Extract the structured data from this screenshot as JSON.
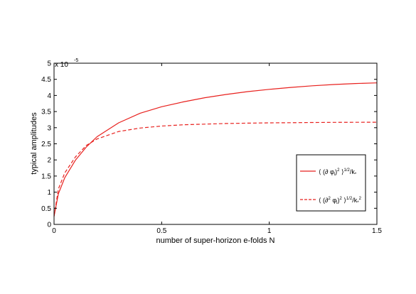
{
  "chart_data": {
    "type": "line",
    "xlabel": "number of super-horizon e-folds N",
    "ylabel": "typical amplitudes",
    "y_scale_base": "x 10",
    "y_scale_exp": "-5",
    "xlim": [
      0,
      1.5
    ],
    "ylim": [
      0,
      5
    ],
    "xticks": [
      0,
      0.5,
      1,
      1.5
    ],
    "xtick_labels": [
      "0",
      "0.5",
      "1",
      "1.5"
    ],
    "yticks": [
      0,
      0.5,
      1,
      1.5,
      2,
      2.5,
      3,
      3.5,
      4,
      4.5,
      5
    ],
    "ytick_labels": [
      "0",
      "0.5",
      "1",
      "1.5",
      "2",
      "2.5",
      "3",
      "3.5",
      "4",
      "4.5",
      "5"
    ],
    "grid": false,
    "legend_position": "right",
    "series": [
      {
        "legend": "⟨ (∂ φl)2 ⟩1/2/k*",
        "color": "#e8211e",
        "style": "solid",
        "x": [
          0,
          0.02,
          0.05,
          0.1,
          0.15,
          0.2,
          0.3,
          0.4,
          0.5,
          0.6,
          0.7,
          0.8,
          0.9,
          1.0,
          1.1,
          1.2,
          1.3,
          1.4,
          1.5
        ],
        "y": [
          0.25,
          0.95,
          1.45,
          2.0,
          2.4,
          2.72,
          3.15,
          3.45,
          3.65,
          3.8,
          3.93,
          4.03,
          4.12,
          4.19,
          4.25,
          4.3,
          4.34,
          4.37,
          4.39
        ]
      },
      {
        "legend": "⟨ (∂2 φl)2 ⟩1/2/k*2",
        "color": "#e8211e",
        "style": "dashed",
        "x": [
          0,
          0.02,
          0.05,
          0.1,
          0.15,
          0.2,
          0.3,
          0.4,
          0.5,
          0.6,
          0.7,
          0.8,
          0.9,
          1.0,
          1.1,
          1.2,
          1.3,
          1.4,
          1.5
        ],
        "y": [
          0.25,
          1.1,
          1.6,
          2.1,
          2.45,
          2.65,
          2.88,
          2.99,
          3.05,
          3.09,
          3.11,
          3.13,
          3.14,
          3.15,
          3.155,
          3.16,
          3.165,
          3.168,
          3.17
        ]
      }
    ]
  }
}
